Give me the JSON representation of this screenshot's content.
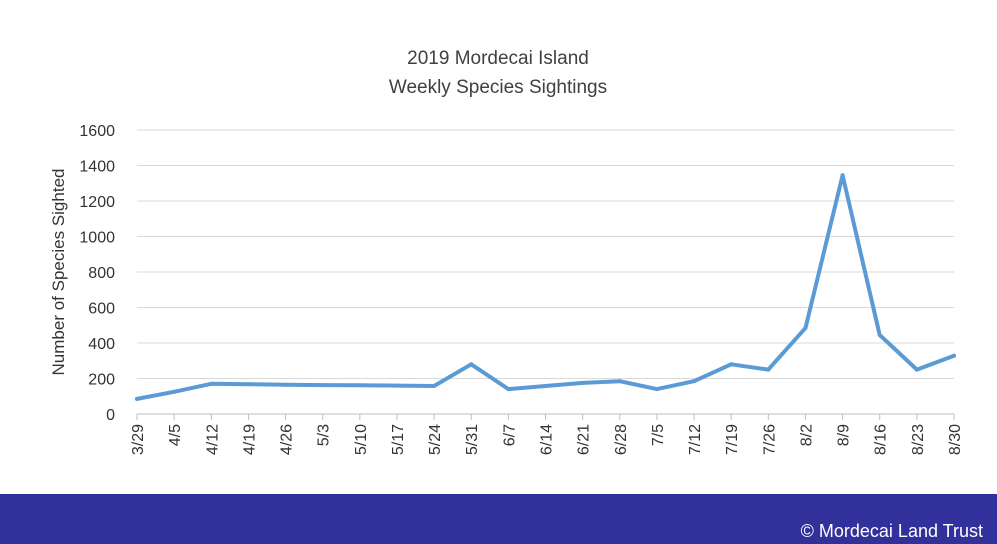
{
  "chart_data": {
    "type": "line",
    "title_lines": [
      "2019 Mordecai Island",
      "Weekly Species Sightings"
    ],
    "xlabel": "",
    "ylabel": "Number of Species Sighted",
    "ylim": [
      0,
      1600
    ],
    "yticks": [
      0,
      200,
      400,
      600,
      800,
      1000,
      1200,
      1400,
      1600
    ],
    "categories": [
      "3/29",
      "4/5",
      "4/12",
      "4/19",
      "4/26",
      "5/3",
      "5/10",
      "5/17",
      "5/24",
      "5/31",
      "6/7",
      "6/14",
      "6/21",
      "6/28",
      "7/5",
      "7/12",
      "7/19",
      "7/26",
      "8/2",
      "8/9",
      "8/16",
      "8/23",
      "8/30"
    ],
    "series": [
      {
        "values": [
          85,
          125,
          170,
          168,
          165,
          163,
          162,
          160,
          158,
          280,
          140,
          158,
          175,
          185,
          140,
          185,
          280,
          250,
          485,
          1345,
          445,
          250,
          328
        ],
        "color": "#5b9bd5"
      }
    ],
    "grid": true,
    "legend": "none"
  },
  "footer": {
    "background": "#32309a",
    "copyright": "© Mordecai Land Trust"
  }
}
